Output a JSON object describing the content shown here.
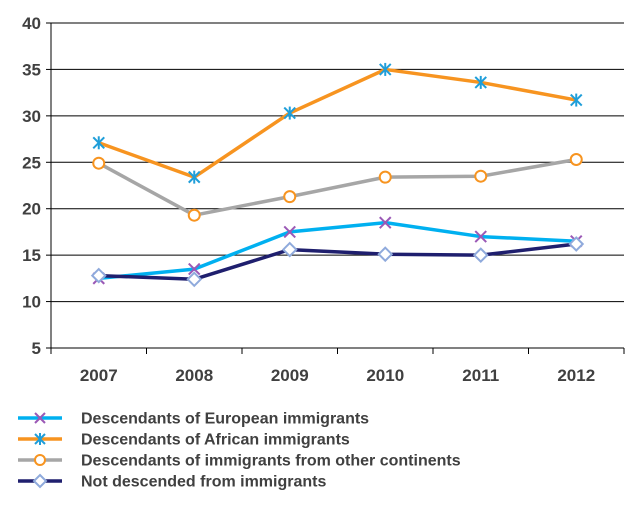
{
  "chart_data": {
    "type": "line",
    "x": [
      "2007",
      "2008",
      "2009",
      "2010",
      "2011",
      "2012"
    ],
    "ylim": [
      5,
      40
    ],
    "yticks": [
      5,
      10,
      15,
      20,
      25,
      30,
      35,
      40
    ],
    "grid": true,
    "legend_position": "bottom",
    "series": [
      {
        "name": "Descendants of European immigrants",
        "values": [
          12.5,
          13.5,
          17.5,
          18.5,
          17.0,
          16.5
        ],
        "line_color": "#00b0f0",
        "marker": "x",
        "marker_color": "#9b59b6"
      },
      {
        "name": "Descendants of African immigrants",
        "values": [
          27.1,
          23.4,
          30.3,
          35.0,
          33.6,
          31.7
        ],
        "line_color": "#f79420",
        "marker": "asterisk",
        "marker_color": "#1f9ed9"
      },
      {
        "name": "Descendants of immigrants from other continents",
        "values": [
          24.9,
          19.3,
          21.3,
          23.4,
          23.5,
          25.3
        ],
        "line_color": "#a6a6a6",
        "marker": "circle",
        "marker_color": "#f79420"
      },
      {
        "name": "Not descended from immigrants",
        "values": [
          12.8,
          12.4,
          15.6,
          15.1,
          15.0,
          16.2
        ],
        "line_color": "#1f1f6e",
        "marker": "diamond",
        "marker_color": "#8faadc"
      }
    ]
  }
}
